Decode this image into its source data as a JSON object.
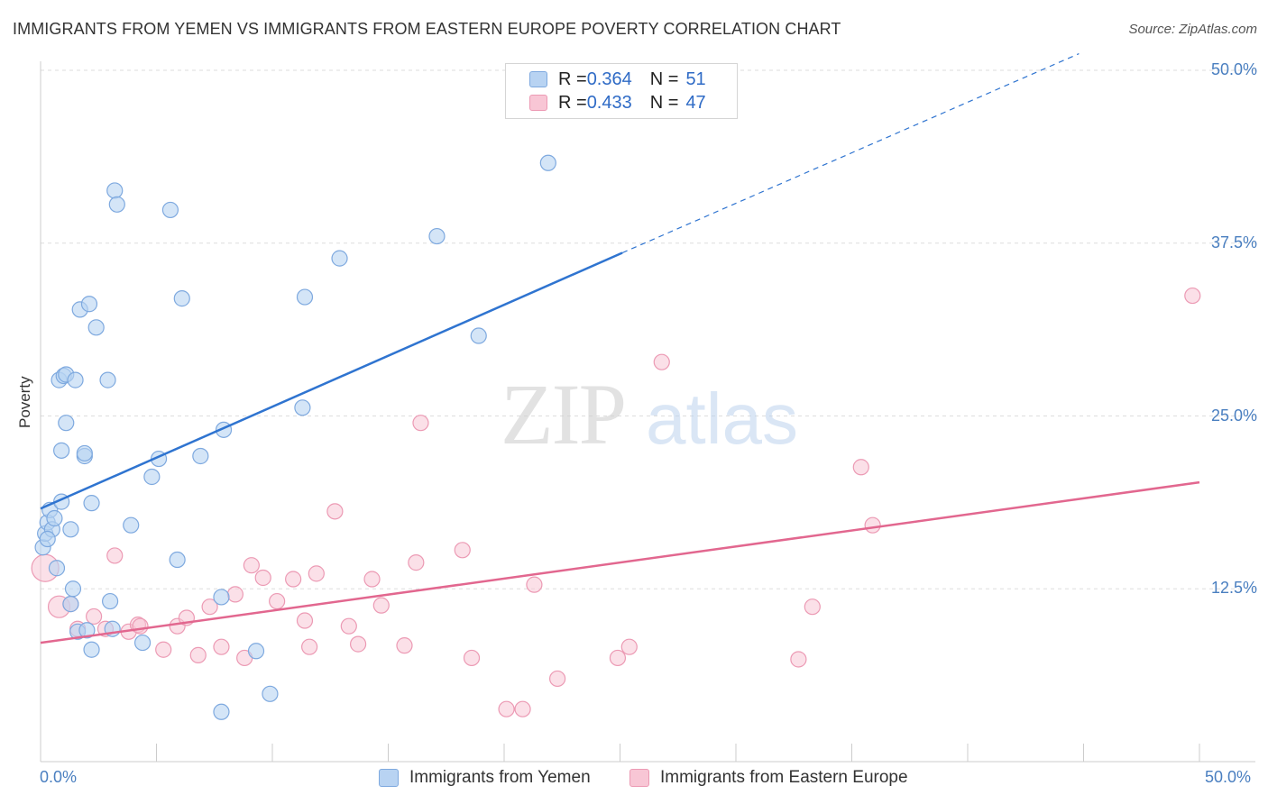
{
  "title": "IMMIGRANTS FROM YEMEN VS IMMIGRANTS FROM EASTERN EUROPE POVERTY CORRELATION CHART",
  "source": "Source: ZipAtlas.com",
  "colors": {
    "blue_fill": "#b8d3f2",
    "blue_stroke": "#7ea9df",
    "blue_line": "#2f74d0",
    "pink_fill": "#f8c6d5",
    "pink_stroke": "#ec9ab4",
    "pink_line": "#e2678f",
    "axis_text": "#4a7fc0",
    "grid": "#dddddd"
  },
  "legend": {
    "rows": [
      {
        "r_label": "R = ",
        "r_value": "0.364",
        "n_label": "N = ",
        "n_value": "51"
      },
      {
        "r_label": "R = ",
        "r_value": "0.433",
        "n_label": "N = ",
        "n_value": "47"
      }
    ]
  },
  "chart_data": {
    "type": "scatter",
    "title": "IMMIGRANTS FROM YEMEN VS IMMIGRANTS FROM EASTERN EUROPE POVERTY CORRELATION CHART",
    "xlabel": "",
    "ylabel": "Poverty",
    "xlim": [
      0,
      50
    ],
    "ylim": [
      0,
      50
    ],
    "x_ticks": [
      "0.0%",
      "50.0%"
    ],
    "y_ticks": [
      "12.5%",
      "25.0%",
      "37.5%",
      "50.0%"
    ],
    "y_tick_values": [
      12.5,
      25.0,
      37.5,
      50.0
    ],
    "grid": "horizontal dashed",
    "legend_position": "top-center and bottom",
    "watermark": "ZIPatlas",
    "series": [
      {
        "name": "Immigrants from Yemen",
        "color": "#b8d3f2",
        "r": "0.364",
        "n": "51",
        "points": [
          [
            0.1,
            15.5
          ],
          [
            0.2,
            16.5
          ],
          [
            0.3,
            17.3
          ],
          [
            0.4,
            18.2
          ],
          [
            0.5,
            16.8
          ],
          [
            0.6,
            17.6
          ],
          [
            0.7,
            14.0
          ],
          [
            0.8,
            27.6
          ],
          [
            0.9,
            18.8
          ],
          [
            0.9,
            22.5
          ],
          [
            1.0,
            27.9
          ],
          [
            1.1,
            24.5
          ],
          [
            1.1,
            28.0
          ],
          [
            1.3,
            16.8
          ],
          [
            1.3,
            11.4
          ],
          [
            1.4,
            12.5
          ],
          [
            1.5,
            27.6
          ],
          [
            1.6,
            9.4
          ],
          [
            1.7,
            32.7
          ],
          [
            1.9,
            22.1
          ],
          [
            1.9,
            22.3
          ],
          [
            2.0,
            9.5
          ],
          [
            2.1,
            33.1
          ],
          [
            2.2,
            8.1
          ],
          [
            2.2,
            18.7
          ],
          [
            2.4,
            31.4
          ],
          [
            2.9,
            27.6
          ],
          [
            3.0,
            11.6
          ],
          [
            3.1,
            9.6
          ],
          [
            3.2,
            41.3
          ],
          [
            3.3,
            40.3
          ],
          [
            3.9,
            17.1
          ],
          [
            4.4,
            8.6
          ],
          [
            4.8,
            20.6
          ],
          [
            5.1,
            21.9
          ],
          [
            5.6,
            39.9
          ],
          [
            5.9,
            14.6
          ],
          [
            6.1,
            33.5
          ],
          [
            6.9,
            22.1
          ],
          [
            7.8,
            11.9
          ],
          [
            7.9,
            24.0
          ],
          [
            7.8,
            3.6
          ],
          [
            9.3,
            8.0
          ],
          [
            9.9,
            4.9
          ],
          [
            11.3,
            25.6
          ],
          [
            11.4,
            33.6
          ],
          [
            12.9,
            36.4
          ],
          [
            17.1,
            38.0
          ],
          [
            18.9,
            30.8
          ],
          [
            21.9,
            43.3
          ],
          [
            0.3,
            16.1
          ]
        ]
      },
      {
        "name": "Immigrants from Eastern Europe",
        "color": "#f8c6d5",
        "r": "0.433",
        "n": "47",
        "points": [
          [
            0.2,
            14.0
          ],
          [
            0.8,
            11.2
          ],
          [
            1.3,
            11.4
          ],
          [
            1.6,
            9.6
          ],
          [
            2.3,
            10.5
          ],
          [
            2.8,
            9.6
          ],
          [
            3.2,
            14.9
          ],
          [
            3.8,
            9.4
          ],
          [
            4.2,
            9.9
          ],
          [
            4.3,
            9.8
          ],
          [
            5.3,
            8.1
          ],
          [
            5.9,
            9.8
          ],
          [
            6.3,
            10.4
          ],
          [
            6.8,
            7.7
          ],
          [
            7.3,
            11.2
          ],
          [
            7.8,
            8.3
          ],
          [
            8.4,
            12.1
          ],
          [
            8.8,
            7.5
          ],
          [
            9.1,
            14.2
          ],
          [
            9.6,
            13.3
          ],
          [
            10.2,
            11.6
          ],
          [
            10.9,
            13.2
          ],
          [
            11.4,
            10.2
          ],
          [
            11.6,
            8.3
          ],
          [
            11.9,
            13.6
          ],
          [
            12.7,
            18.1
          ],
          [
            13.3,
            9.8
          ],
          [
            13.7,
            8.5
          ],
          [
            14.3,
            13.2
          ],
          [
            14.7,
            11.3
          ],
          [
            15.7,
            8.4
          ],
          [
            16.2,
            14.4
          ],
          [
            16.4,
            24.5
          ],
          [
            18.2,
            15.3
          ],
          [
            18.6,
            7.5
          ],
          [
            20.1,
            3.8
          ],
          [
            20.8,
            3.8
          ],
          [
            21.3,
            12.8
          ],
          [
            22.3,
            6.0
          ],
          [
            24.9,
            7.5
          ],
          [
            25.4,
            8.3
          ],
          [
            26.8,
            28.9
          ],
          [
            32.7,
            7.4
          ],
          [
            33.3,
            11.2
          ],
          [
            35.4,
            21.3
          ],
          [
            35.9,
            17.1
          ],
          [
            49.7,
            33.7
          ]
        ]
      }
    ],
    "trendlines": [
      {
        "series": "Immigrants from Yemen",
        "x0": 0,
        "y0": 18.3,
        "x1": 25.1,
        "y1": 36.8,
        "dashed_to": [
          44.8,
          51.2
        ]
      },
      {
        "series": "Immigrants from Eastern Europe",
        "x0": 0,
        "y0": 8.6,
        "x1": 50.0,
        "y1": 20.2
      }
    ]
  },
  "bottom_legend": {
    "series_a": "Immigrants from Yemen",
    "series_b": "Immigrants from Eastern Europe"
  }
}
